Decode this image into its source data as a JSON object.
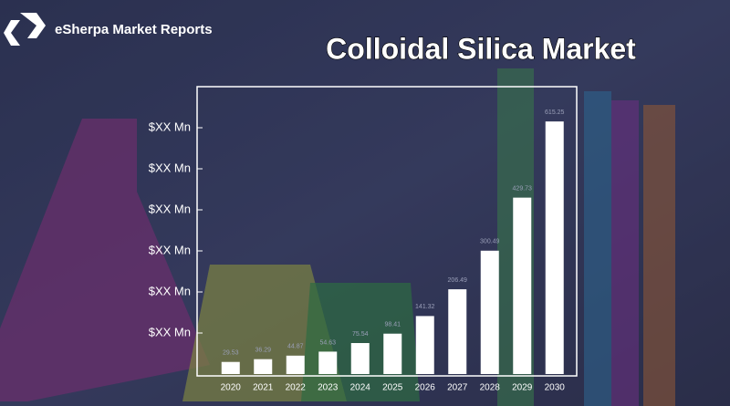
{
  "brand": "eSherpa Market Reports",
  "chart_data": {
    "type": "bar",
    "title": "Colloidal Silica Market",
    "categories": [
      "2020",
      "2021",
      "2022",
      "2023",
      "2024",
      "2025",
      "2026",
      "2027",
      "2028",
      "2029",
      "2030"
    ],
    "values": [
      29.53,
      36.29,
      44.87,
      54.63,
      75.54,
      98.41,
      141.32,
      206.49,
      300.49,
      429.73,
      615.25
    ],
    "color": "#ffffff",
    "ylim": [
      0,
      700
    ],
    "yticks": [
      {
        "value": 100,
        "label": "$XX Mn"
      },
      {
        "value": 200,
        "label": "$XX Mn"
      },
      {
        "value": 300,
        "label": "$XX Mn"
      },
      {
        "value": 400,
        "label": "$XX Mn"
      },
      {
        "value": 500,
        "label": "$XX Mn"
      },
      {
        "value": 600,
        "label": "$XX Mn"
      }
    ]
  }
}
